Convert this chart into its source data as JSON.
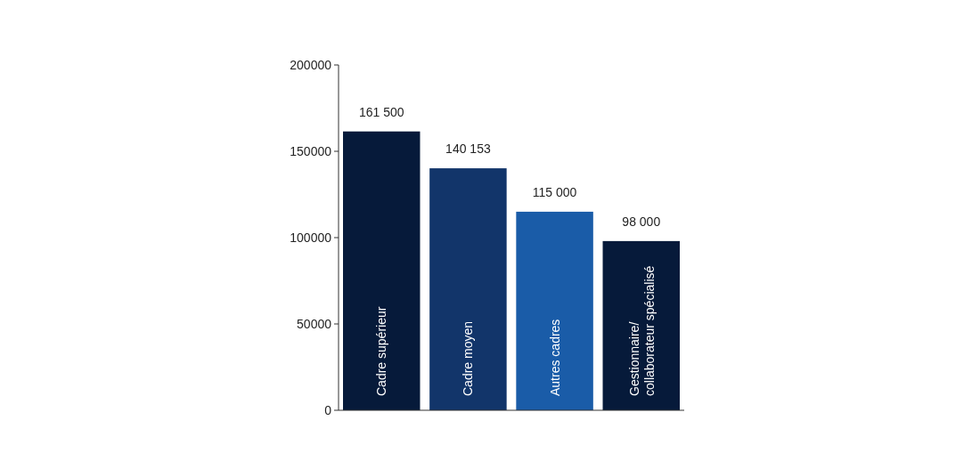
{
  "chart_data": {
    "type": "bar",
    "categories": [
      "Cadre supérieur",
      "Cadre moyen",
      "Autres cadres",
      "Gestionnaire/ collaborateur spécialisé"
    ],
    "values": [
      161500,
      140153,
      115000,
      98000
    ],
    "colors": [
      "#061a3a",
      "#12356a",
      "#1a5ca8",
      "#061a3a"
    ],
    "value_labels": [
      "161 500",
      "140 153",
      "115 000",
      "98 000"
    ],
    "ylim": [
      0,
      200000
    ],
    "yticks": [
      0,
      50000,
      100000,
      150000,
      200000
    ],
    "grid": false
  }
}
